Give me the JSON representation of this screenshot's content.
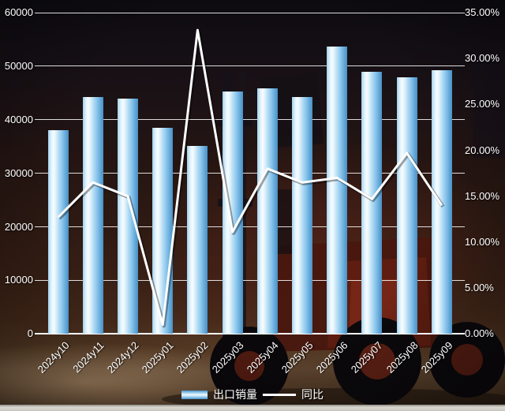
{
  "chart_data": {
    "type": "bar",
    "subtype": "combo-bar-line",
    "categories": [
      "2024y10",
      "2024y11",
      "2024y12",
      "2025y01",
      "2025y02",
      "2025y03",
      "2025y04",
      "2025y05",
      "2025y06",
      "2025y07",
      "2025y08",
      "2025y09"
    ],
    "series": [
      {
        "name": "出口销量",
        "type": "bar",
        "axis": "left",
        "values": [
          38000,
          44300,
          44000,
          38500,
          35100,
          45200,
          45800,
          44300,
          53700,
          48900,
          47900,
          49200
        ]
      },
      {
        "name": "同比",
        "type": "line",
        "axis": "right",
        "unit": "%",
        "values": [
          12.7,
          16.5,
          15.0,
          1.0,
          33.1,
          11.1,
          18.0,
          16.5,
          17.0,
          14.7,
          19.7,
          14.0
        ]
      }
    ],
    "left_axis": {
      "min": 0,
      "max": 60000,
      "step": 10000,
      "tick_values": [
        60000,
        50000,
        40000,
        30000,
        20000,
        10000,
        0
      ],
      "tick_labels": [
        "60000",
        "50000",
        "40000",
        "30000",
        "20000",
        "10000",
        "0"
      ]
    },
    "right_axis": {
      "min": 0,
      "max": 35,
      "step": 5,
      "tick_values": [
        35,
        30,
        25,
        20,
        15,
        10,
        5,
        0
      ],
      "tick_labels": [
        "35.00%",
        "30.00%",
        "25.00%",
        "20.00%",
        "15.00%",
        "10.00%",
        "5.00%",
        "0.00%"
      ]
    },
    "legend": {
      "position": "bottom"
    },
    "grid": "horizontal-white",
    "colors": {
      "bar_edge": "#4a8fc2",
      "bar_mid": "#8cc6ec",
      "bar_highlight": "#f7fcff",
      "line": "#ffffff",
      "gridline": "#ffffff",
      "text": "#ffffff"
    },
    "background": {
      "image": "forklift-photo",
      "floor": "wood",
      "tone": "dark-red-brown"
    }
  }
}
